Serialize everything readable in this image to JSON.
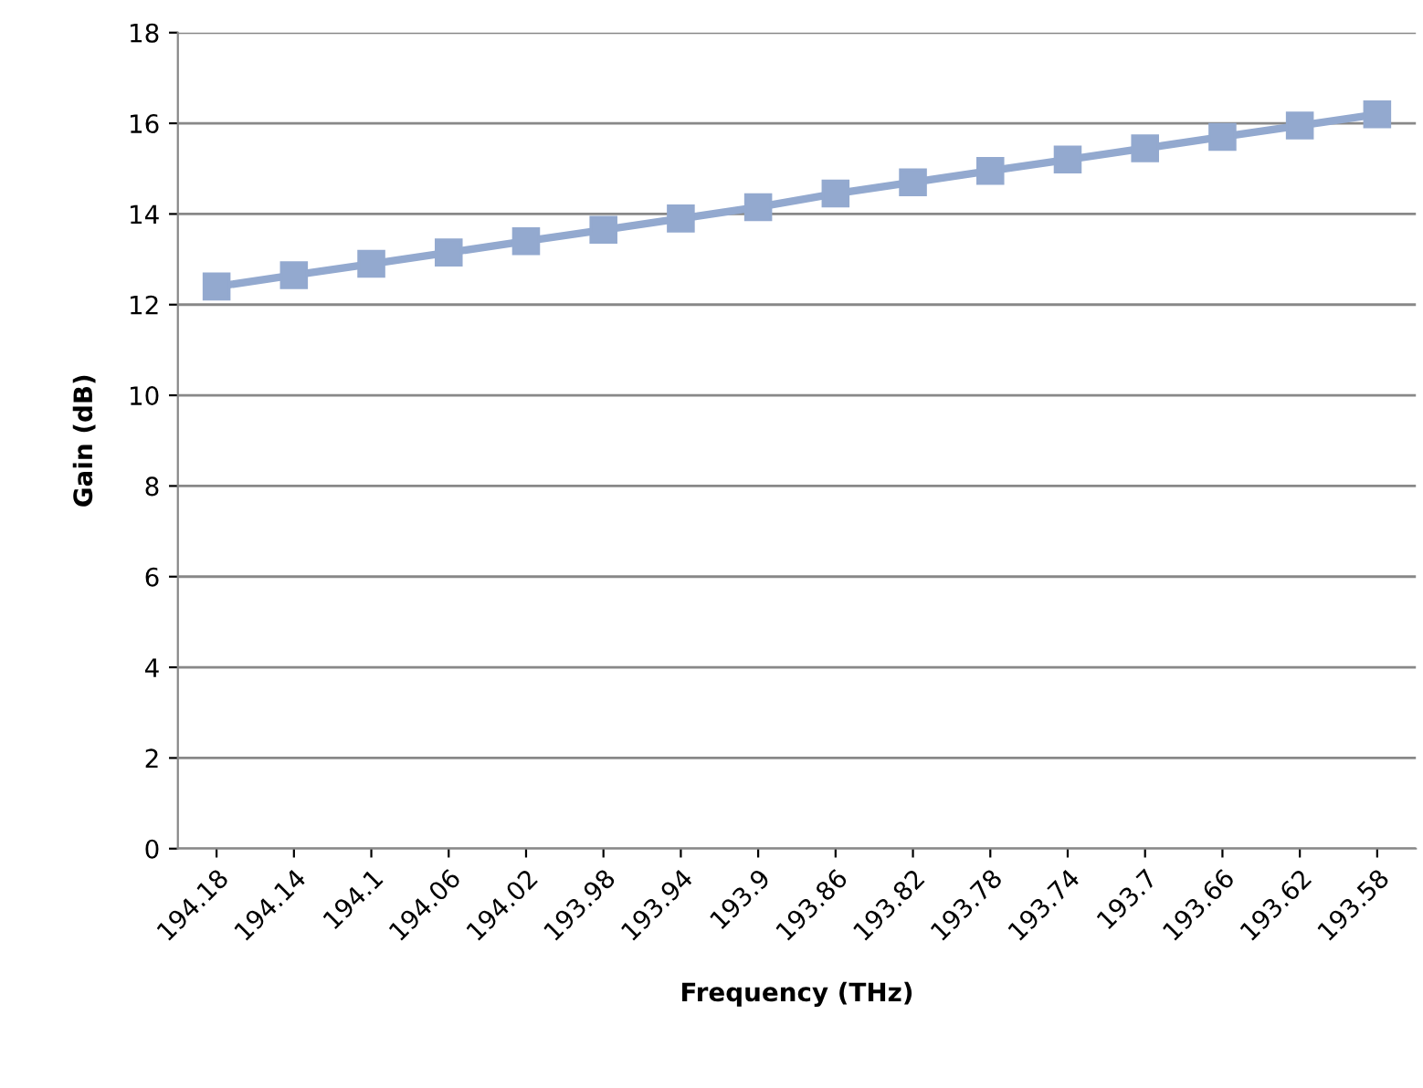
{
  "chart_data": {
    "type": "line",
    "xlabel": "Frequency (THz)",
    "ylabel": "Gain (dB)",
    "categories": [
      "194.18",
      "194.14",
      "194.1",
      "194.06",
      "194.02",
      "193.98",
      "193.94",
      "193.9",
      "193.86",
      "193.82",
      "193.78",
      "193.74",
      "193.7",
      "193.66",
      "193.62",
      "193.58"
    ],
    "series": [
      {
        "color": "#93a9cf",
        "values": [
          12.4,
          12.65,
          12.9,
          13.15,
          13.4,
          13.65,
          13.9,
          14.15,
          14.45,
          14.7,
          14.95,
          15.2,
          15.45,
          15.7,
          15.95,
          16.2
        ]
      }
    ],
    "ylim": [
      0,
      18
    ],
    "yticks": [
      0,
      2,
      4,
      6,
      8,
      10,
      12,
      14,
      16,
      18
    ],
    "grid": "y",
    "marker": "square",
    "line_style": "solid",
    "legend": false
  }
}
